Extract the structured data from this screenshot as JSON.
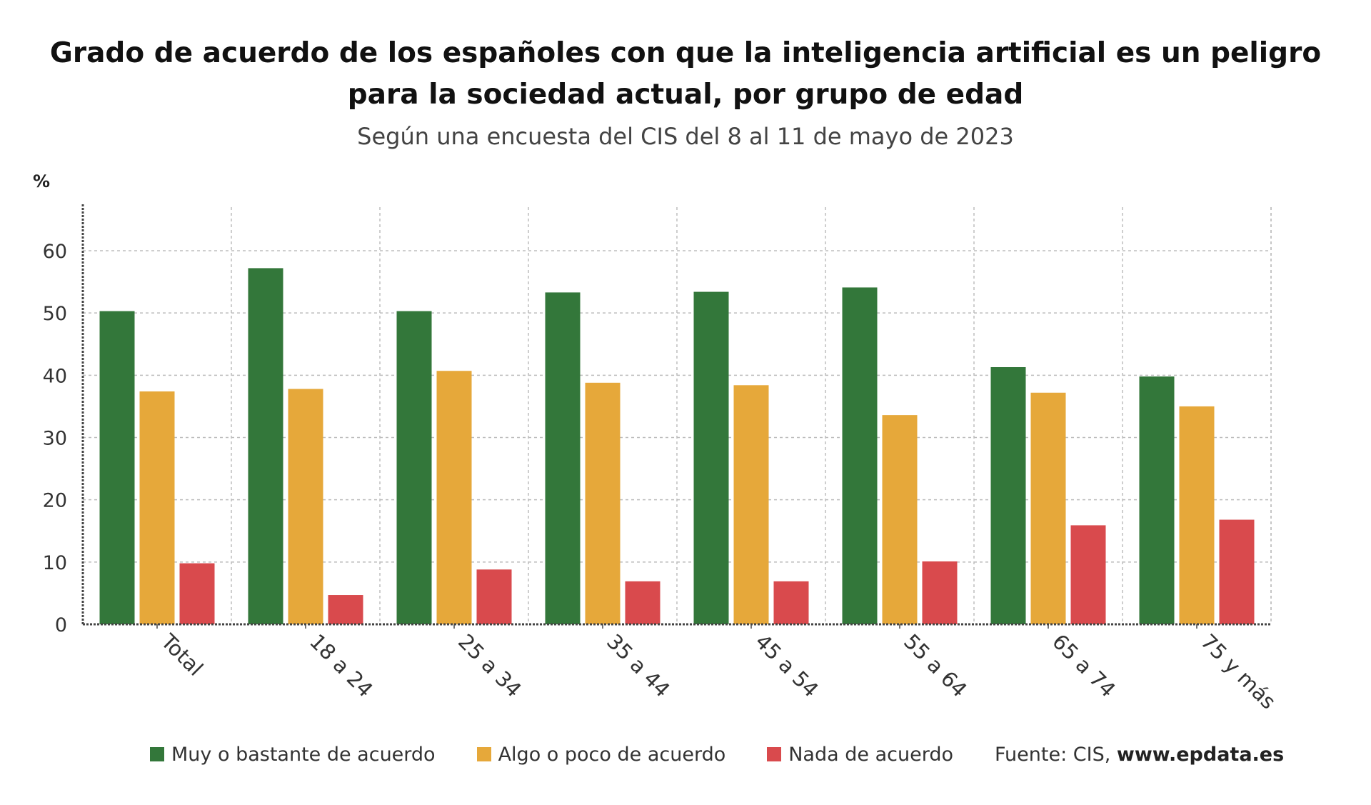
{
  "title": "Grado de acuerdo de los españoles con que la inteligencia artificial es un peligro para la sociedad actual, por grupo de edad",
  "subtitle": "Según una encuesta del CIS del 8 al 11 de mayo de 2023",
  "source_label": "Fuente: CIS, ",
  "source_url": "www.epdata.es",
  "chart_data": {
    "type": "bar",
    "title": "Grado de acuerdo de los españoles con que la inteligencia artificial es un peligro para la sociedad actual, por grupo de edad",
    "subtitle": "Según una encuesta del CIS del 8 al 11 de mayo de 2023",
    "ylabel": "%",
    "xlabel": "",
    "ylim": [
      0,
      67
    ],
    "yticks": [
      0,
      10,
      20,
      30,
      40,
      50,
      60
    ],
    "grid": true,
    "legend_position": "bottom",
    "categories": [
      "Total",
      "18 a 24",
      "25 a 34",
      "35 a 44",
      "45 a 54",
      "55 a 64",
      "65 a 74",
      "75 y más"
    ],
    "series": [
      {
        "name": "Muy o bastante de acuerdo",
        "color": "#33773a",
        "values": [
          50.3,
          57.2,
          50.3,
          53.3,
          53.4,
          54.1,
          41.3,
          39.8
        ]
      },
      {
        "name": "Algo o poco de acuerdo",
        "color": "#e6a83a",
        "values": [
          37.4,
          37.8,
          40.7,
          38.8,
          38.4,
          33.6,
          37.2,
          35.0
        ]
      },
      {
        "name": "Nada de acuerdo",
        "color": "#d94a4d",
        "values": [
          9.8,
          4.7,
          8.8,
          6.9,
          6.9,
          10.1,
          15.9,
          16.8
        ]
      }
    ],
    "source": "Fuente: CIS, www.epdata.es"
  }
}
